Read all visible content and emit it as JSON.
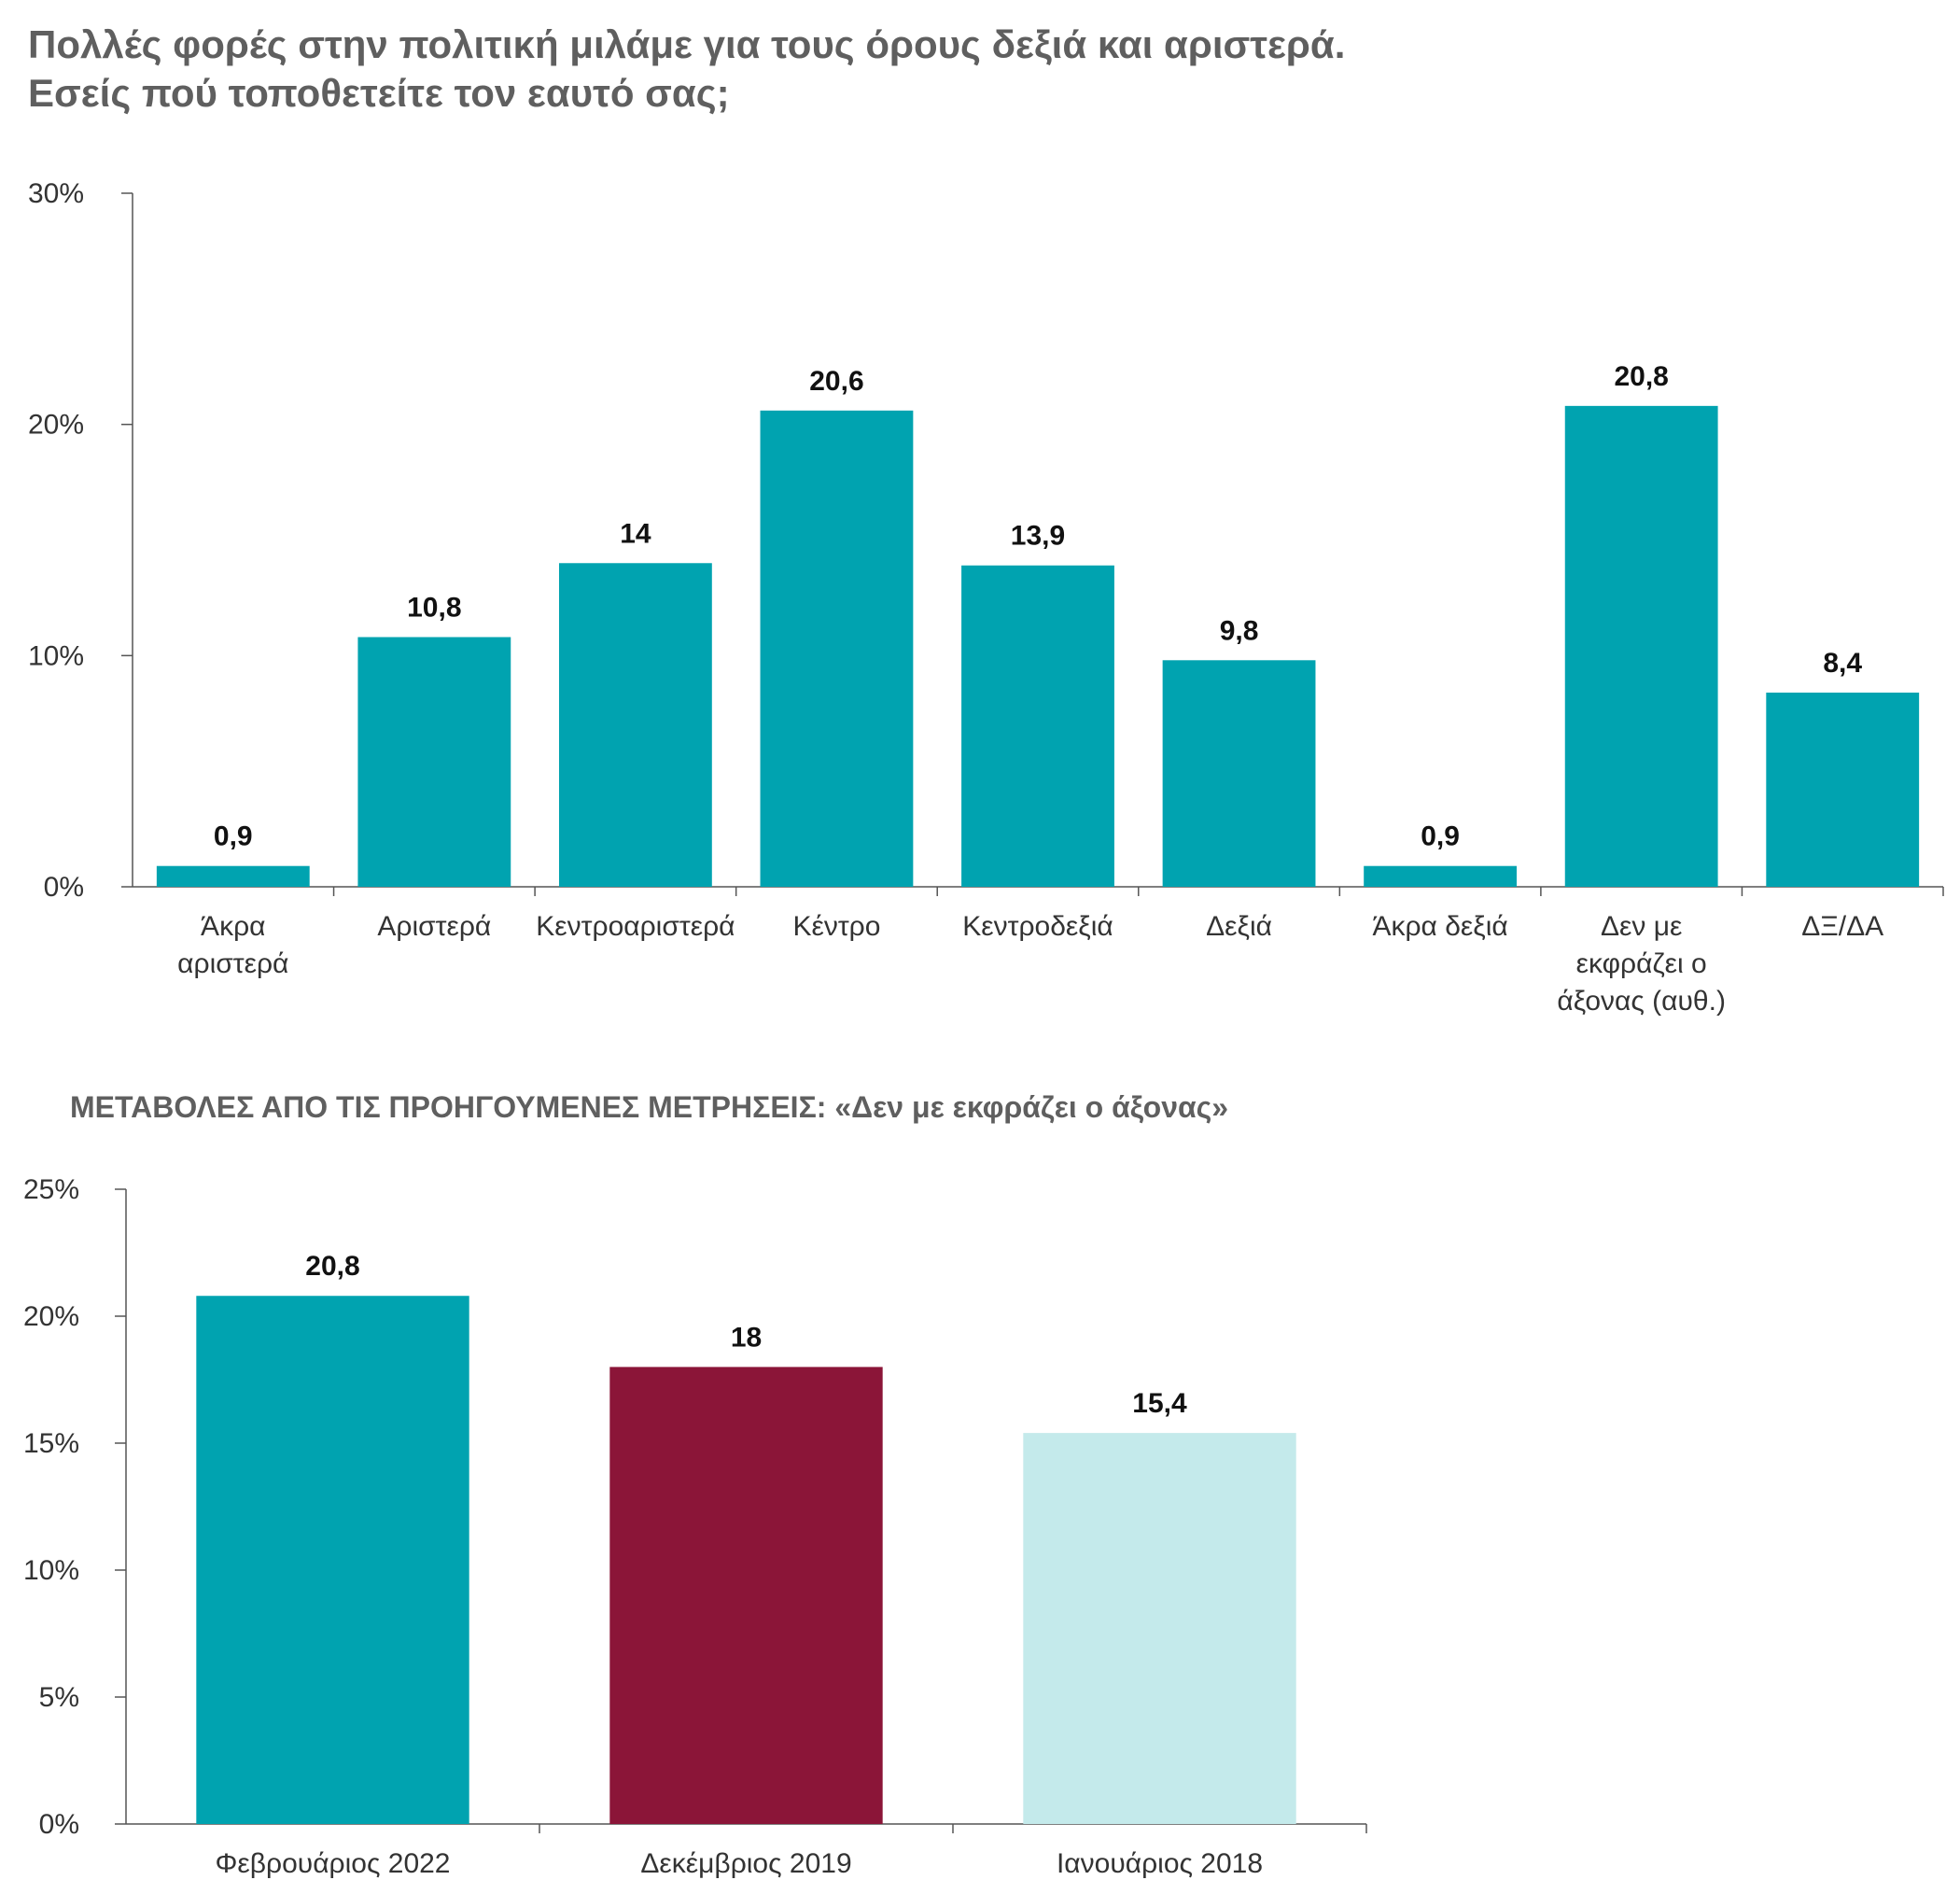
{
  "title_lines": [
    "Πολλές φορές στην πολιτική μιλάμε για τους όρους δεξιά και αριστερά.",
    "Εσείς πού τοποθετείτε τον εαυτό σας;"
  ],
  "subtitle2": "ΜΕΤΑΒΟΛΕΣ ΑΠΟ ΤΙΣ ΠΡΟΗΓΟΥΜΕΝΕΣ ΜΕΤΡΗΣΕΙΣ: «Δεν με εκφράζει ο άξονας»",
  "chart_data": [
    {
      "type": "bar",
      "title": "Πολλές φορές στην πολιτική μιλάμε για τους όρους δεξιά και αριστερά. Εσείς πού τοποθετείτε τον εαυτό σας;",
      "categories": [
        [
          "Άκρα",
          "αριστερά"
        ],
        [
          "Αριστερά"
        ],
        [
          "Κεντροαριστερά"
        ],
        [
          "Κέντρο"
        ],
        [
          "Κεντροδεξιά"
        ],
        [
          "Δεξιά"
        ],
        [
          "Άκρα δεξιά"
        ],
        [
          "Δεν με",
          "εκφράζει ο",
          "άξονας (αυθ.)"
        ],
        [
          "ΔΞ/ΔΑ"
        ]
      ],
      "values": [
        0.9,
        10.8,
        14,
        20.6,
        13.9,
        9.8,
        0.9,
        20.8,
        8.4
      ],
      "value_labels": [
        "0,9",
        "10,8",
        "14",
        "20,6",
        "13,9",
        "9,8",
        "0,9",
        "20,8",
        "8,4"
      ],
      "bar_colors": [
        "#00a3b0",
        "#00a3b0",
        "#00a3b0",
        "#00a3b0",
        "#00a3b0",
        "#00a3b0",
        "#00a3b0",
        "#00a3b0",
        "#00a3b0"
      ],
      "ylim": [
        0,
        30
      ],
      "yticks": [
        0,
        10,
        20,
        30
      ],
      "ytick_labels": [
        "0%",
        "10%",
        "20%",
        "30%"
      ],
      "grid": false,
      "legend": "none"
    },
    {
      "type": "bar",
      "title": "ΜΕΤΑΒΟΛΕΣ ΑΠΟ ΤΙΣ ΠΡΟΗΓΟΥΜΕΝΕΣ ΜΕΤΡΗΣΕΙΣ: «Δεν με εκφράζει ο άξονας»",
      "categories": [
        [
          "Φεβρουάριος 2022"
        ],
        [
          "Δεκέμβριος 2019"
        ],
        [
          "Ιανουάριος 2018"
        ]
      ],
      "values": [
        20.8,
        18,
        15.4
      ],
      "value_labels": [
        "20,8",
        "18",
        "15,4"
      ],
      "bar_colors": [
        "#00a3b0",
        "#8b1538",
        "#c4eaeb"
      ],
      "ylim": [
        0,
        25
      ],
      "yticks": [
        0,
        5,
        10,
        15,
        20,
        25
      ],
      "ytick_labels": [
        "0%",
        "5%",
        "10%",
        "15%",
        "20%",
        "25%"
      ],
      "grid": false,
      "legend": "none"
    }
  ]
}
